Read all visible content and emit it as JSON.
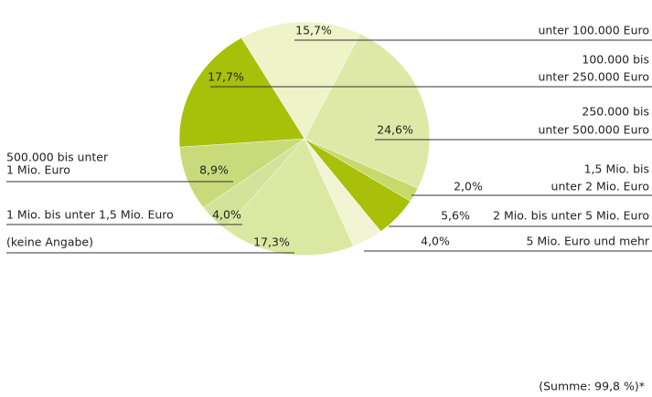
{
  "chart_data": {
    "type": "pie",
    "slices": [
      {
        "lines": [
          "unter 100.000 Euro"
        ],
        "value": 15.7,
        "value_label": "15,7%",
        "color": "#eef3c8"
      },
      {
        "lines": [
          "250.000 bis",
          "unter 500.000 Euro"
        ],
        "value": 24.6,
        "value_label": "24,6%",
        "color": "#dfe9a7"
      },
      {
        "lines": [
          "1,5 Mio. bis",
          "unter 2 Mio. Euro"
        ],
        "value": 2.0,
        "value_label": "2,0%",
        "color": "#c6d96a"
      },
      {
        "lines": [
          "2 Mio. bis unter 5 Mio. Euro"
        ],
        "value": 5.6,
        "value_label": "5,6%",
        "color": "#a8c00a"
      },
      {
        "lines": [
          "5 Mio. Euro und mehr"
        ],
        "value": 4.0,
        "value_label": "4,0%",
        "color": "#f1f5d3"
      },
      {
        "lines": [
          "(keine Angabe)"
        ],
        "value": 17.3,
        "value_label": "17,3%",
        "color": "#dbe8a2"
      },
      {
        "lines": [
          "1 Mio. bis unter 1,5 Mio. Euro"
        ],
        "value": 4.0,
        "value_label": "4,0%",
        "color": "#d3e39a"
      },
      {
        "lines": [
          "500.000 bis unter",
          "1 Mio. Euro"
        ],
        "value": 8.9,
        "value_label": "8,9%",
        "color": "#c9da7a"
      },
      {
        "lines": [
          "100.000 bis",
          "unter 250.000 Euro"
        ],
        "value": 17.7,
        "value_label": "17,7%",
        "color": "#a7c10a"
      }
    ],
    "note": "(Summe: 99,8 %)*"
  }
}
